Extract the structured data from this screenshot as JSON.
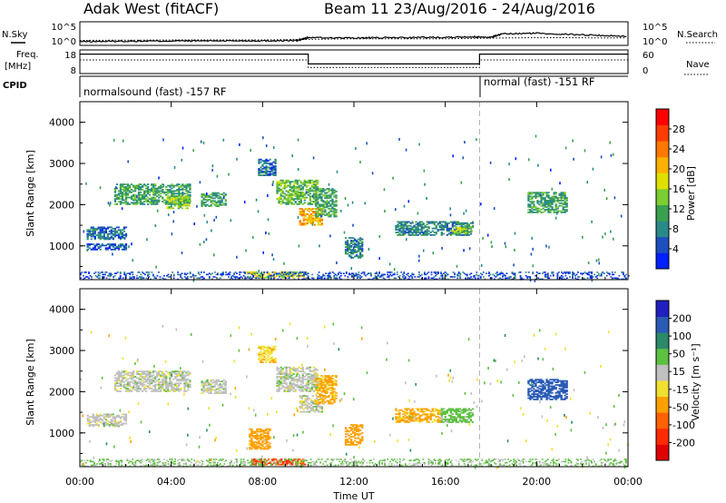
{
  "header": {
    "title": "Adak West (fitACF)",
    "beam_date": "Beam 11  23/Aug/2016 - 24/Aug/2016"
  },
  "aux_panels": {
    "nsky_label": "N.Sky",
    "nsearch_label": "N.Search",
    "freq_label_line1": "Freq.",
    "freq_label_line2": "[MHz]",
    "nave_label": "Nave",
    "cpid_label": "CPID",
    "noise_ticks": [
      "10^5",
      "10^0"
    ],
    "freq_ticks": [
      "18",
      "8"
    ],
    "nave_ticks": [
      "60",
      "0"
    ]
  },
  "cpid": {
    "mode1": "normalsound (fast) -157 RF",
    "mode2": "normal (fast) -151 RF",
    "switch_hour": 17.5
  },
  "colorbars": {
    "power": {
      "label": "Power [dB]",
      "ticks": [
        "4",
        "8",
        "12",
        "16",
        "20",
        "24",
        "28"
      ],
      "colors": [
        "#0020ff",
        "#1e4fbf",
        "#2a8a8a",
        "#3aa050",
        "#7ccd32",
        "#e0e000",
        "#ffb000",
        "#ff7800",
        "#ff3c00",
        "#ff0000"
      ]
    },
    "velocity": {
      "label": "Velocity [m s⁻¹]",
      "ticks": [
        "200",
        "100",
        "50",
        "15",
        "-15",
        "-50",
        "-100",
        "-200"
      ],
      "colors": [
        "#2020c0",
        "#2a5ab5",
        "#2a8a6a",
        "#5cc040",
        "#c0c0c0",
        "#f0e030",
        "#ffa000",
        "#ff6000",
        "#ff2a00",
        "#e00000"
      ]
    }
  },
  "chart_data": [
    {
      "type": "line",
      "title": "N.Sky / N.Search",
      "x_range_hours": [
        0,
        24
      ],
      "ylim_log10": [
        0,
        5
      ],
      "series": [
        {
          "name": "N.Sky",
          "x": [
            0,
            2,
            4,
            6,
            8,
            9.5,
            10,
            12,
            14,
            16,
            17,
            18,
            18.5,
            20,
            22,
            24
          ],
          "y_log10": [
            0.5,
            0.6,
            0.65,
            0.7,
            0.7,
            0.75,
            1.5,
            1.4,
            1.5,
            1.6,
            1.7,
            1.6,
            2.4,
            2.6,
            2.2,
            1.8
          ]
        },
        {
          "name": "N.Search",
          "x": [
            0,
            4,
            8,
            12,
            16,
            20,
            24
          ],
          "y_log10": [
            0.8,
            0.9,
            0.9,
            1.2,
            1.2,
            1.5,
            1.4
          ]
        }
      ]
    },
    {
      "type": "line",
      "title": "Freq. / Nave",
      "x_range_hours": [
        0,
        24
      ],
      "series": [
        {
          "name": "Freq. [MHz]",
          "x": [
            0,
            10,
            10,
            17.5,
            17.5,
            24
          ],
          "y": [
            16.5,
            16.5,
            12.0,
            12.0,
            16.5,
            16.5
          ],
          "ylim": [
            8,
            18
          ]
        },
        {
          "name": "Nave",
          "x": [
            0,
            10,
            10,
            17.5,
            17.5,
            24
          ],
          "y": [
            35,
            35,
            14,
            14,
            35,
            35
          ],
          "ylim": [
            0,
            60
          ]
        }
      ]
    },
    {
      "type": "heatmap",
      "quantity": "Power",
      "xlabel": "Time UT",
      "ylabel": "Slant Range [km]",
      "x_ticks": [
        "00:00",
        "04:00",
        "08:00",
        "12:00",
        "16:00",
        "20:00",
        "00:00"
      ],
      "y_ticks": [
        "1000",
        "2000",
        "3000",
        "4000"
      ],
      "xlim_hours": [
        0,
        24
      ],
      "ylim_km": [
        180,
        4500
      ],
      "regions": [
        {
          "t": [
            0.3,
            2.0
          ],
          "r": [
            1150,
            1450
          ],
          "value": 8
        },
        {
          "t": [
            0.3,
            2.0
          ],
          "r": [
            900,
            1050
          ],
          "value": 6
        },
        {
          "t": [
            1.5,
            4.8
          ],
          "r": [
            2000,
            2500
          ],
          "value": 12
        },
        {
          "t": [
            3.8,
            4.8
          ],
          "r": [
            1900,
            2200
          ],
          "value": 16
        },
        {
          "t": [
            5.3,
            6.4
          ],
          "r": [
            1950,
            2300
          ],
          "value": 12
        },
        {
          "t": [
            7.8,
            8.6
          ],
          "r": [
            2700,
            3100
          ],
          "value": 8
        },
        {
          "t": [
            8.6,
            10.4
          ],
          "r": [
            2000,
            2600
          ],
          "value": 14
        },
        {
          "t": [
            9.6,
            10.6
          ],
          "r": [
            1500,
            1900
          ],
          "value": 22
        },
        {
          "t": [
            10.3,
            11.2
          ],
          "r": [
            1700,
            2400
          ],
          "value": 12
        },
        {
          "t": [
            11.6,
            12.4
          ],
          "r": [
            700,
            1200
          ],
          "value": 10
        },
        {
          "t": [
            7.3,
            9.9
          ],
          "r": [
            220,
            350
          ],
          "value": 18
        },
        {
          "t": [
            13.8,
            17.2
          ],
          "r": [
            1250,
            1600
          ],
          "value": 10
        },
        {
          "t": [
            16.3,
            17.1
          ],
          "r": [
            1300,
            1450
          ],
          "value": 16
        },
        {
          "t": [
            19.6,
            21.3
          ],
          "r": [
            1800,
            2300
          ],
          "value": 12
        },
        {
          "t": [
            0,
            24
          ],
          "r": [
            180,
            350
          ],
          "value": 6
        }
      ]
    },
    {
      "type": "heatmap",
      "quantity": "Velocity",
      "xlabel": "Time UT",
      "ylabel": "Slant Range [km]",
      "x_ticks": [
        "00:00",
        "04:00",
        "08:00",
        "12:00",
        "16:00",
        "20:00",
        "00:00"
      ],
      "y_ticks": [
        "1000",
        "2000",
        "3000",
        "4000"
      ],
      "xlim_hours": [
        0,
        24
      ],
      "ylim_km": [
        180,
        4500
      ],
      "regions": [
        {
          "t": [
            0.3,
            2.0
          ],
          "r": [
            1150,
            1450
          ],
          "value": 0
        },
        {
          "t": [
            1.5,
            4.8
          ],
          "r": [
            2000,
            2500
          ],
          "value": 0
        },
        {
          "t": [
            5.3,
            6.4
          ],
          "r": [
            1950,
            2300
          ],
          "value": 0
        },
        {
          "t": [
            7.8,
            8.6
          ],
          "r": [
            2700,
            3100
          ],
          "value": -40
        },
        {
          "t": [
            8.6,
            10.4
          ],
          "r": [
            2000,
            2600
          ],
          "value": 0
        },
        {
          "t": [
            9.6,
            10.6
          ],
          "r": [
            1500,
            1900
          ],
          "value": 0
        },
        {
          "t": [
            10.3,
            11.2
          ],
          "r": [
            1700,
            2400
          ],
          "value": -60
        },
        {
          "t": [
            7.4,
            8.3
          ],
          "r": [
            600,
            1100
          ],
          "value": -80
        },
        {
          "t": [
            11.6,
            12.4
          ],
          "r": [
            700,
            1200
          ],
          "value": -80
        },
        {
          "t": [
            7.5,
            9.9
          ],
          "r": [
            220,
            350
          ],
          "value": -150
        },
        {
          "t": [
            13.8,
            15.8
          ],
          "r": [
            1250,
            1600
          ],
          "value": -60
        },
        {
          "t": [
            15.8,
            17.2
          ],
          "r": [
            1250,
            1600
          ],
          "value": 30
        },
        {
          "t": [
            19.6,
            21.3
          ],
          "r": [
            1800,
            2300
          ],
          "value": 150
        },
        {
          "t": [
            0,
            24
          ],
          "r": [
            180,
            350
          ],
          "value": 20
        }
      ]
    }
  ]
}
